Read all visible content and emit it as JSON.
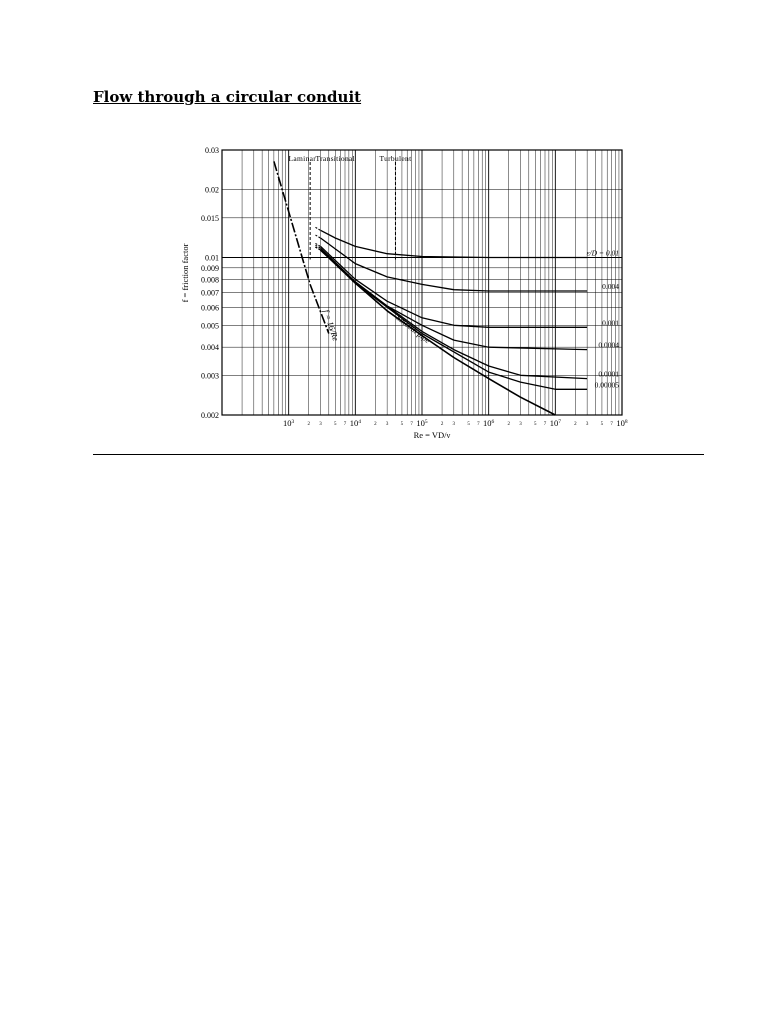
{
  "document": {
    "title": "Flow through a circular conduit"
  },
  "chart_data": {
    "type": "line",
    "title": "",
    "xlabel": "Re = VD/ν",
    "ylabel": "f = friction factor",
    "x_scale": "log",
    "y_scale": "log",
    "xlim": [
      100,
      100000000
    ],
    "ylim": [
      0.002,
      0.03
    ],
    "grid": true,
    "y_ticks": [
      {
        "value": 0.002,
        "label": "0.002"
      },
      {
        "value": 0.003,
        "label": "0.003"
      },
      {
        "value": 0.004,
        "label": "0.004"
      },
      {
        "value": 0.005,
        "label": "0.005"
      },
      {
        "value": 0.006,
        "label": "0.006"
      },
      {
        "value": 0.007,
        "label": "0.007"
      },
      {
        "value": 0.008,
        "label": "0.008"
      },
      {
        "value": 0.009,
        "label": "0.009"
      },
      {
        "value": 0.01,
        "label": "0.01"
      },
      {
        "value": 0.015,
        "label": "0.015"
      },
      {
        "value": 0.02,
        "label": "0.02"
      },
      {
        "value": 0.03,
        "label": "0.03"
      }
    ],
    "x_major_ticks": [
      {
        "value": 1000,
        "base": "10",
        "exp": "3"
      },
      {
        "value": 10000,
        "base": "10",
        "exp": "4"
      },
      {
        "value": 100000,
        "base": "10",
        "exp": "5"
      },
      {
        "value": 1000000,
        "base": "10",
        "exp": "6"
      },
      {
        "value": 10000000,
        "base": "10",
        "exp": "7"
      },
      {
        "value": 100000000,
        "base": "10",
        "exp": "8"
      }
    ],
    "x_minor_tick_labels": [
      "2",
      "3",
      "5",
      "7"
    ],
    "regions": [
      {
        "label": "Laminar",
        "x": 1600
      },
      {
        "label": "Transitional",
        "x": 5000
      },
      {
        "label": "Turbulent",
        "x": 40000
      }
    ],
    "region_boundaries": [
      2100,
      40000
    ],
    "series": [
      {
        "name": "",
        "label": "f = 16/Re",
        "style": "laminar",
        "points": [
          [
            600,
            0.0267
          ],
          [
            2100,
            0.0076
          ],
          [
            4000,
            0.0046
          ]
        ]
      },
      {
        "name": "",
        "label": "Smooth pipe",
        "style": "smooth",
        "points": [
          [
            3000,
            0.0108
          ],
          [
            5000,
            0.0094
          ],
          [
            10000,
            0.0077
          ],
          [
            30000,
            0.0058
          ],
          [
            100000,
            0.0045
          ],
          [
            300000,
            0.0036
          ],
          [
            1000000,
            0.0029
          ],
          [
            3000000,
            0.0024
          ],
          [
            10000000,
            0.002
          ]
        ]
      },
      {
        "name": "ε/D = 0.01",
        "label": "ε/D = 0.01",
        "style": "rough",
        "points": [
          [
            3000,
            0.0132
          ],
          [
            5000,
            0.0122
          ],
          [
            10000,
            0.0112
          ],
          [
            30000,
            0.0104
          ],
          [
            100000,
            0.0101
          ],
          [
            1000000,
            0.01
          ],
          [
            30000000,
            0.01
          ]
        ]
      },
      {
        "name": "0.004",
        "label": "0.004",
        "style": "rough",
        "points": [
          [
            3000,
            0.0122
          ],
          [
            10000,
            0.0094
          ],
          [
            30000,
            0.0082
          ],
          [
            100000,
            0.0076
          ],
          [
            300000,
            0.0072
          ],
          [
            1000000,
            0.0071
          ],
          [
            30000000,
            0.0071
          ]
        ]
      },
      {
        "name": "0.001",
        "label": "0.001",
        "style": "rough",
        "points": [
          [
            3000,
            0.0112
          ],
          [
            10000,
            0.008
          ],
          [
            30000,
            0.0064
          ],
          [
            100000,
            0.0054
          ],
          [
            300000,
            0.005
          ],
          [
            1000000,
            0.0049
          ],
          [
            30000000,
            0.0049
          ]
        ]
      },
      {
        "name": "0.0004",
        "label": "0.0004",
        "style": "rough",
        "points": [
          [
            3000,
            0.011
          ],
          [
            10000,
            0.0078
          ],
          [
            30000,
            0.0061
          ],
          [
            100000,
            0.005
          ],
          [
            300000,
            0.0043
          ],
          [
            1000000,
            0.004
          ],
          [
            30000000,
            0.0039
          ]
        ]
      },
      {
        "name": "0.0001",
        "label": "0.0001",
        "style": "rough",
        "points": [
          [
            3000,
            0.0108
          ],
          [
            10000,
            0.0077
          ],
          [
            100000,
            0.0047
          ],
          [
            300000,
            0.0039
          ],
          [
            1000000,
            0.0033
          ],
          [
            3000000,
            0.003
          ],
          [
            30000000,
            0.0029
          ]
        ]
      },
      {
        "name": "0.00005",
        "label": "0.00005",
        "style": "rough",
        "points": [
          [
            3000,
            0.0108
          ],
          [
            10000,
            0.0077
          ],
          [
            100000,
            0.0046
          ],
          [
            1000000,
            0.0031
          ],
          [
            3000000,
            0.0028
          ],
          [
            10000000,
            0.0026
          ],
          [
            30000000,
            0.0026
          ]
        ]
      }
    ]
  }
}
